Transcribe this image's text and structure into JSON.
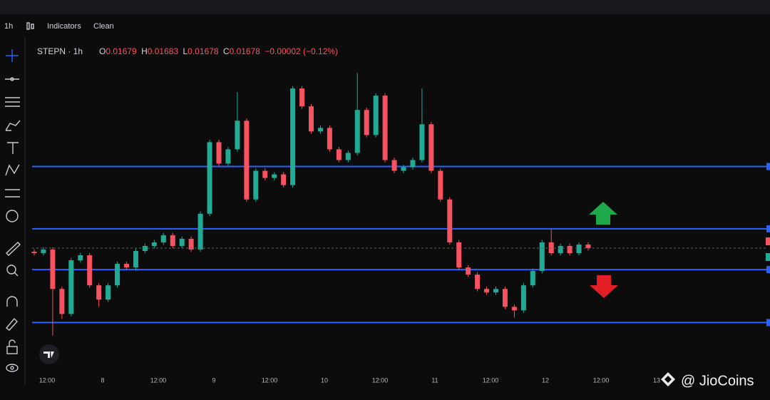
{
  "toolbar": {
    "interval": "1h",
    "indicators": "Indicators",
    "clean": "Clean"
  },
  "header": {
    "symbol": "STEPN · 1h",
    "open_label": "O",
    "open": "0.01679",
    "high_label": "H",
    "high": "0.01683",
    "low_label": "L",
    "low": "0.01678",
    "close_label": "C",
    "close": "0.01678",
    "change": "−0.00002 (−0.12%)"
  },
  "x_axis_labels": [
    "12:00",
    "8",
    "12:00",
    "9",
    "12:00",
    "10",
    "12:00",
    "11",
    "12:00",
    "12",
    "12:00",
    "13"
  ],
  "watermark": "@ JioCoins",
  "chart_data": {
    "type": "candlestick",
    "open": [
      0.016765,
      0.016759,
      0.016774,
      0.016609,
      0.016504,
      0.016729,
      0.01675,
      0.016624,
      0.016564,
      0.016624,
      0.016714,
      0.016699,
      0.016768,
      0.016789,
      0.016804,
      0.016834,
      0.016789,
      0.016819,
      0.016774,
      0.016924,
      0.017224,
      0.017134,
      0.017194,
      0.017314,
      0.016984,
      0.017104,
      0.017074,
      0.017089,
      0.017044,
      0.017449,
      0.017374,
      0.017269,
      0.017284,
      0.017194,
      0.017149,
      0.017179,
      0.017359,
      0.017254,
      0.017419,
      0.017149,
      0.017104,
      0.017119,
      0.017149,
      0.017299,
      0.017104,
      0.016984,
      0.016804,
      0.016699,
      0.016669,
      0.016609,
      0.016594,
      0.016609,
      0.016534,
      0.016519,
      0.016624,
      0.016684,
      0.016804,
      0.016759,
      0.016789,
      0.016759,
      0.016795
    ],
    "high": [
      0.016775,
      0.016784,
      0.016784,
      0.016619,
      0.016739,
      0.01676,
      0.01676,
      0.016634,
      0.016634,
      0.016724,
      0.016724,
      0.016778,
      0.016799,
      0.016814,
      0.016844,
      0.016844,
      0.016829,
      0.016829,
      0.016934,
      0.017234,
      0.017234,
      0.017204,
      0.017434,
      0.017324,
      0.017114,
      0.017114,
      0.017099,
      0.017099,
      0.017459,
      0.017459,
      0.017384,
      0.017294,
      0.017294,
      0.017204,
      0.017189,
      0.017514,
      0.017369,
      0.017429,
      0.017429,
      0.017159,
      0.017129,
      0.017159,
      0.017449,
      0.017309,
      0.017114,
      0.016994,
      0.016814,
      0.016709,
      0.016679,
      0.016619,
      0.016619,
      0.016619,
      0.016544,
      0.016634,
      0.016694,
      0.016814,
      0.016859,
      0.016799,
      0.016799,
      0.016805,
      0.016805
    ],
    "low": [
      0.016749,
      0.016749,
      0.016414,
      0.016484,
      0.016494,
      0.016719,
      0.016614,
      0.016534,
      0.016554,
      0.016614,
      0.016689,
      0.016689,
      0.016758,
      0.016779,
      0.016794,
      0.016779,
      0.016779,
      0.016764,
      0.016764,
      0.016914,
      0.017124,
      0.017124,
      0.017184,
      0.016974,
      0.016974,
      0.017064,
      0.017064,
      0.017034,
      0.017034,
      0.017364,
      0.017259,
      0.017259,
      0.017184,
      0.017139,
      0.017139,
      0.017169,
      0.017244,
      0.017244,
      0.017139,
      0.017094,
      0.017094,
      0.017109,
      0.017139,
      0.017094,
      0.016974,
      0.016794,
      0.016689,
      0.016659,
      0.016599,
      0.016584,
      0.016584,
      0.016524,
      0.016489,
      0.016509,
      0.016614,
      0.016674,
      0.016749,
      0.016749,
      0.016749,
      0.016749,
      0.01677
    ],
    "close": [
      0.016759,
      0.016774,
      0.016609,
      0.016504,
      0.016729,
      0.01675,
      0.016624,
      0.016564,
      0.016624,
      0.016714,
      0.016699,
      0.016768,
      0.016789,
      0.016804,
      0.016834,
      0.016789,
      0.016819,
      0.016774,
      0.016924,
      0.017224,
      0.017134,
      0.017194,
      0.017314,
      0.016984,
      0.017104,
      0.017074,
      0.017089,
      0.017044,
      0.017449,
      0.017374,
      0.017269,
      0.017284,
      0.017194,
      0.017149,
      0.017179,
      0.017359,
      0.017254,
      0.017419,
      0.017149,
      0.017104,
      0.017119,
      0.017149,
      0.017299,
      0.017104,
      0.016984,
      0.016804,
      0.016699,
      0.016669,
      0.016609,
      0.016594,
      0.016609,
      0.016534,
      0.016519,
      0.016624,
      0.016684,
      0.016804,
      0.016759,
      0.016789,
      0.016759,
      0.016795,
      0.01678
    ],
    "up_color": "#22ab94",
    "down_color": "#f7525f",
    "ylim": [
      0.01626,
      0.01776
    ],
    "levels": [
      0.017122,
      0.016861,
      0.01669,
      0.016468
    ],
    "level_color": "#2962ff"
  }
}
